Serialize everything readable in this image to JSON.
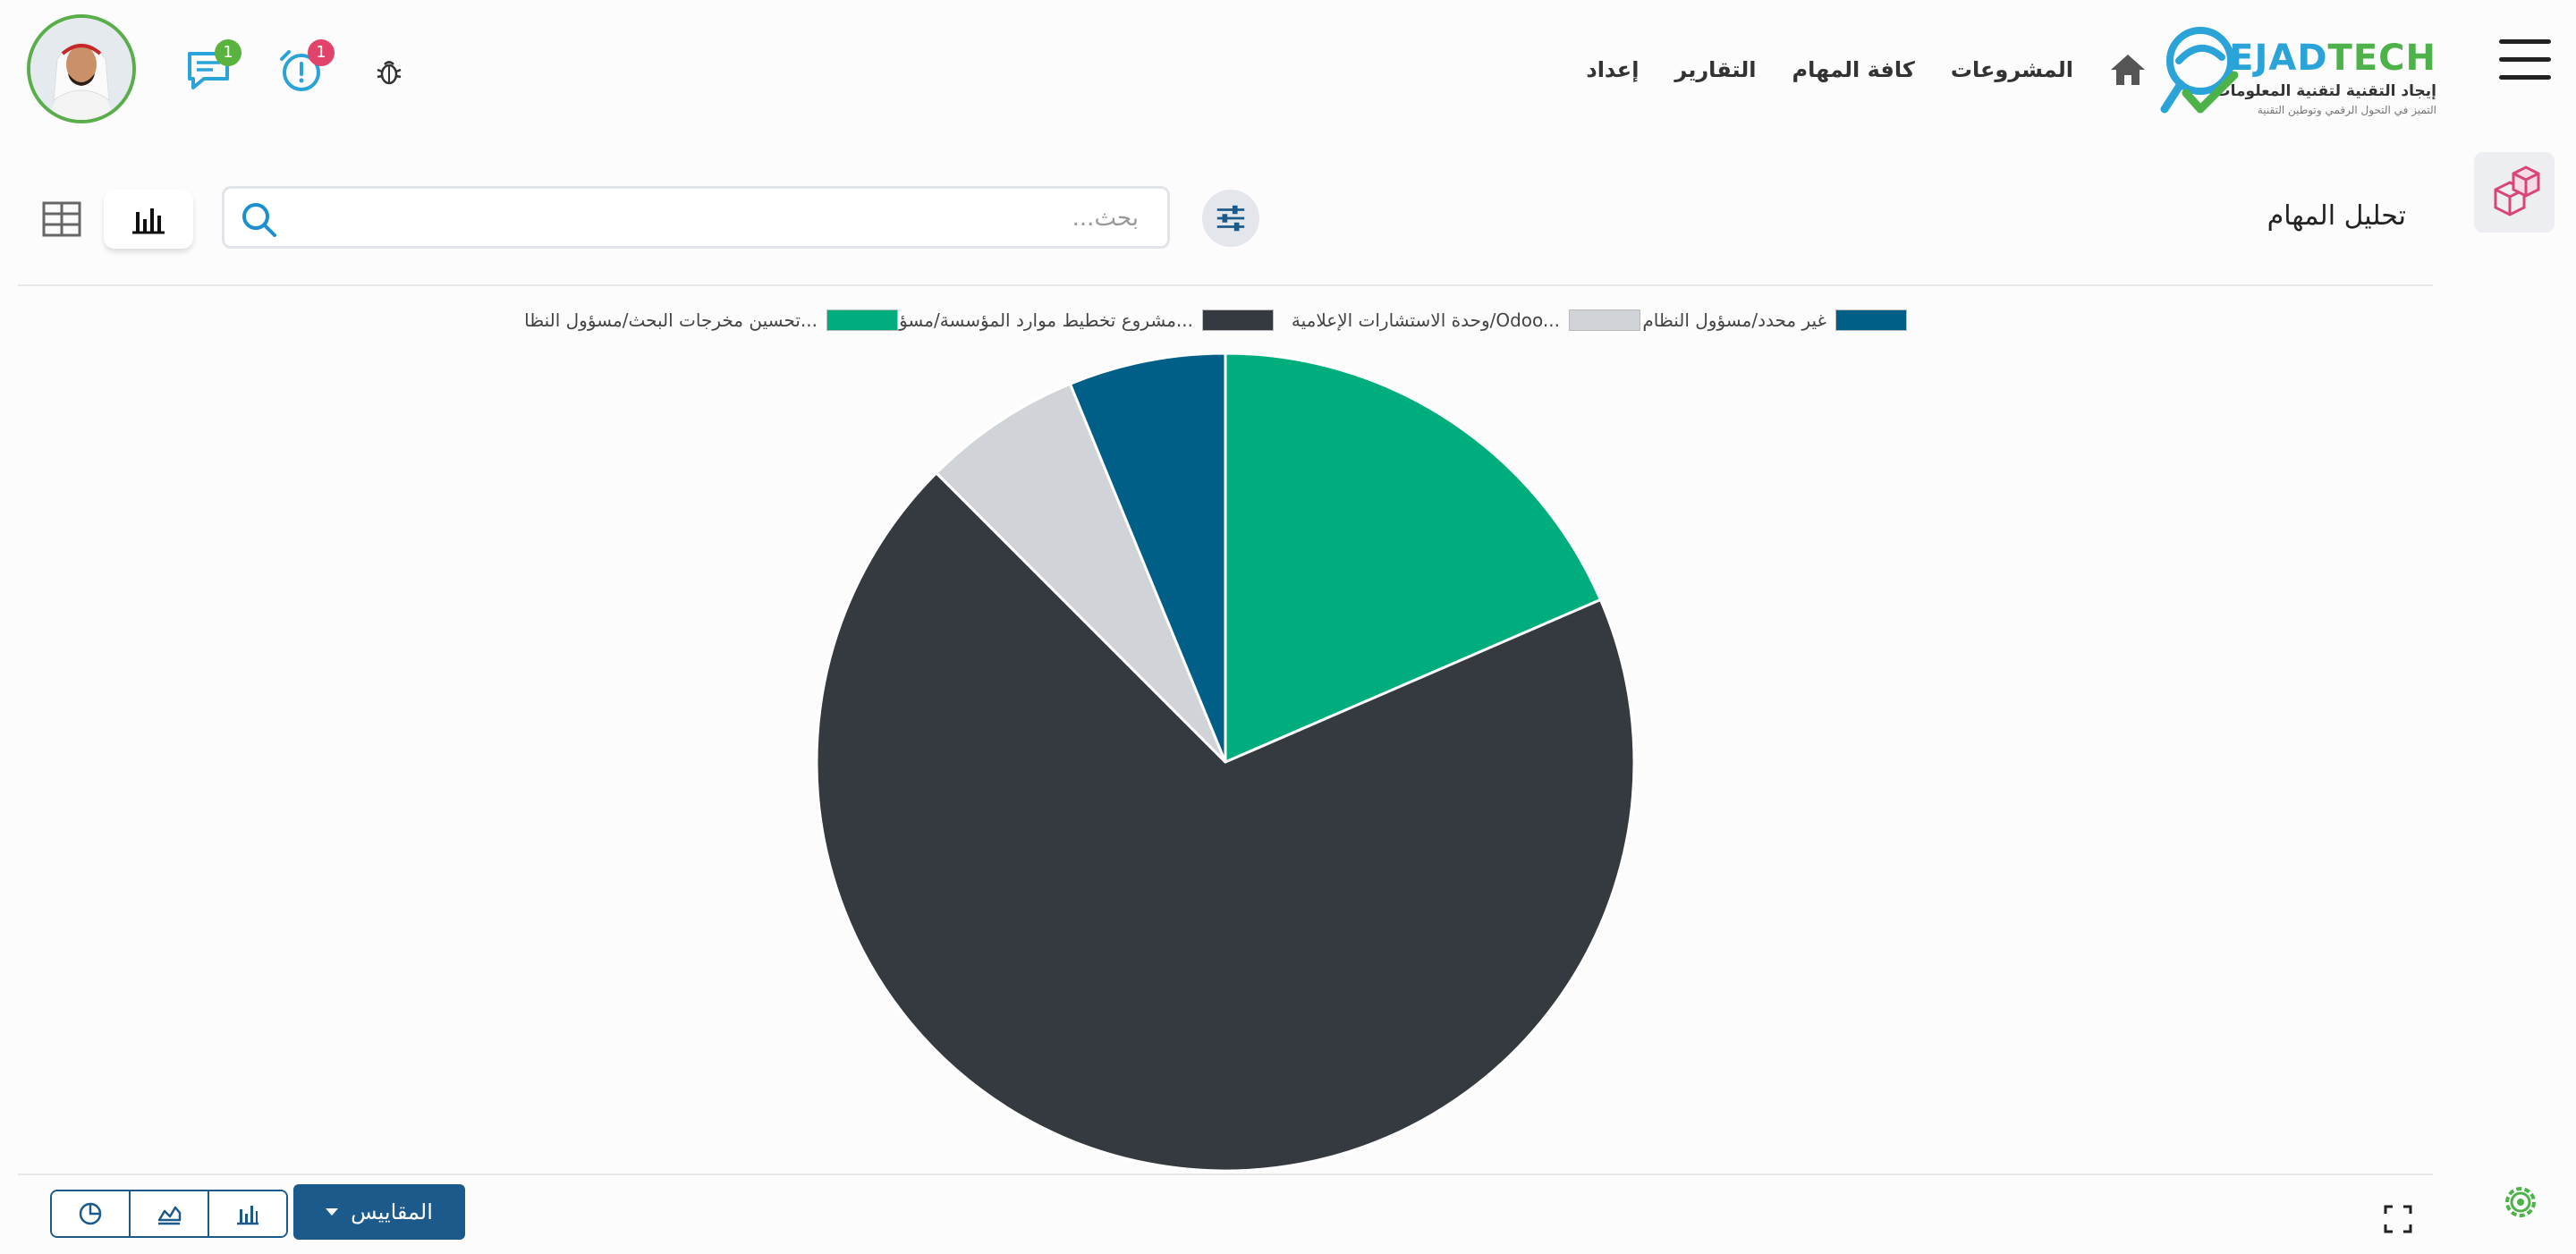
{
  "header": {
    "logo_en_primary": "EJAD",
    "logo_en_secondary": "TECH",
    "logo_ar": "إيجاد التقنية لتقنية المعلومات",
    "logo_tagline": "التميز في التحول الرقمي وتوطين التقنية",
    "nav": [
      "المشروعات",
      "كافة المهام",
      "التقارير",
      "إعداد"
    ],
    "messages_count": "1",
    "activities_count": "1"
  },
  "control_panel": {
    "title": "تحليل المهام",
    "search_placeholder": "بحث..."
  },
  "chart_data": {
    "type": "pie",
    "legend_position": "top",
    "slices": [
      {
        "label": "تحسين مخرجات البحث/مسؤول النظا...",
        "value": 18.5,
        "color": "#00ad7c"
      },
      {
        "label": "مشروع تخطيط موارد المؤسسة/مسؤو...",
        "value": 69.0,
        "color": "#343a40"
      },
      {
        "label": "وحدة الاستشارات الإعلامية/Odoo...",
        "value": 6.3,
        "color": "#d0d4d8"
      },
      {
        "label": "غير محدد/مسؤول النظام",
        "value": 6.2,
        "color": "#005f87"
      }
    ]
  },
  "bottom_bar": {
    "measures_label": "المقاييس"
  },
  "colors": {
    "accent": "#1c5a8c",
    "badge_green": "#5ab33f",
    "badge_red": "#e2436b"
  }
}
